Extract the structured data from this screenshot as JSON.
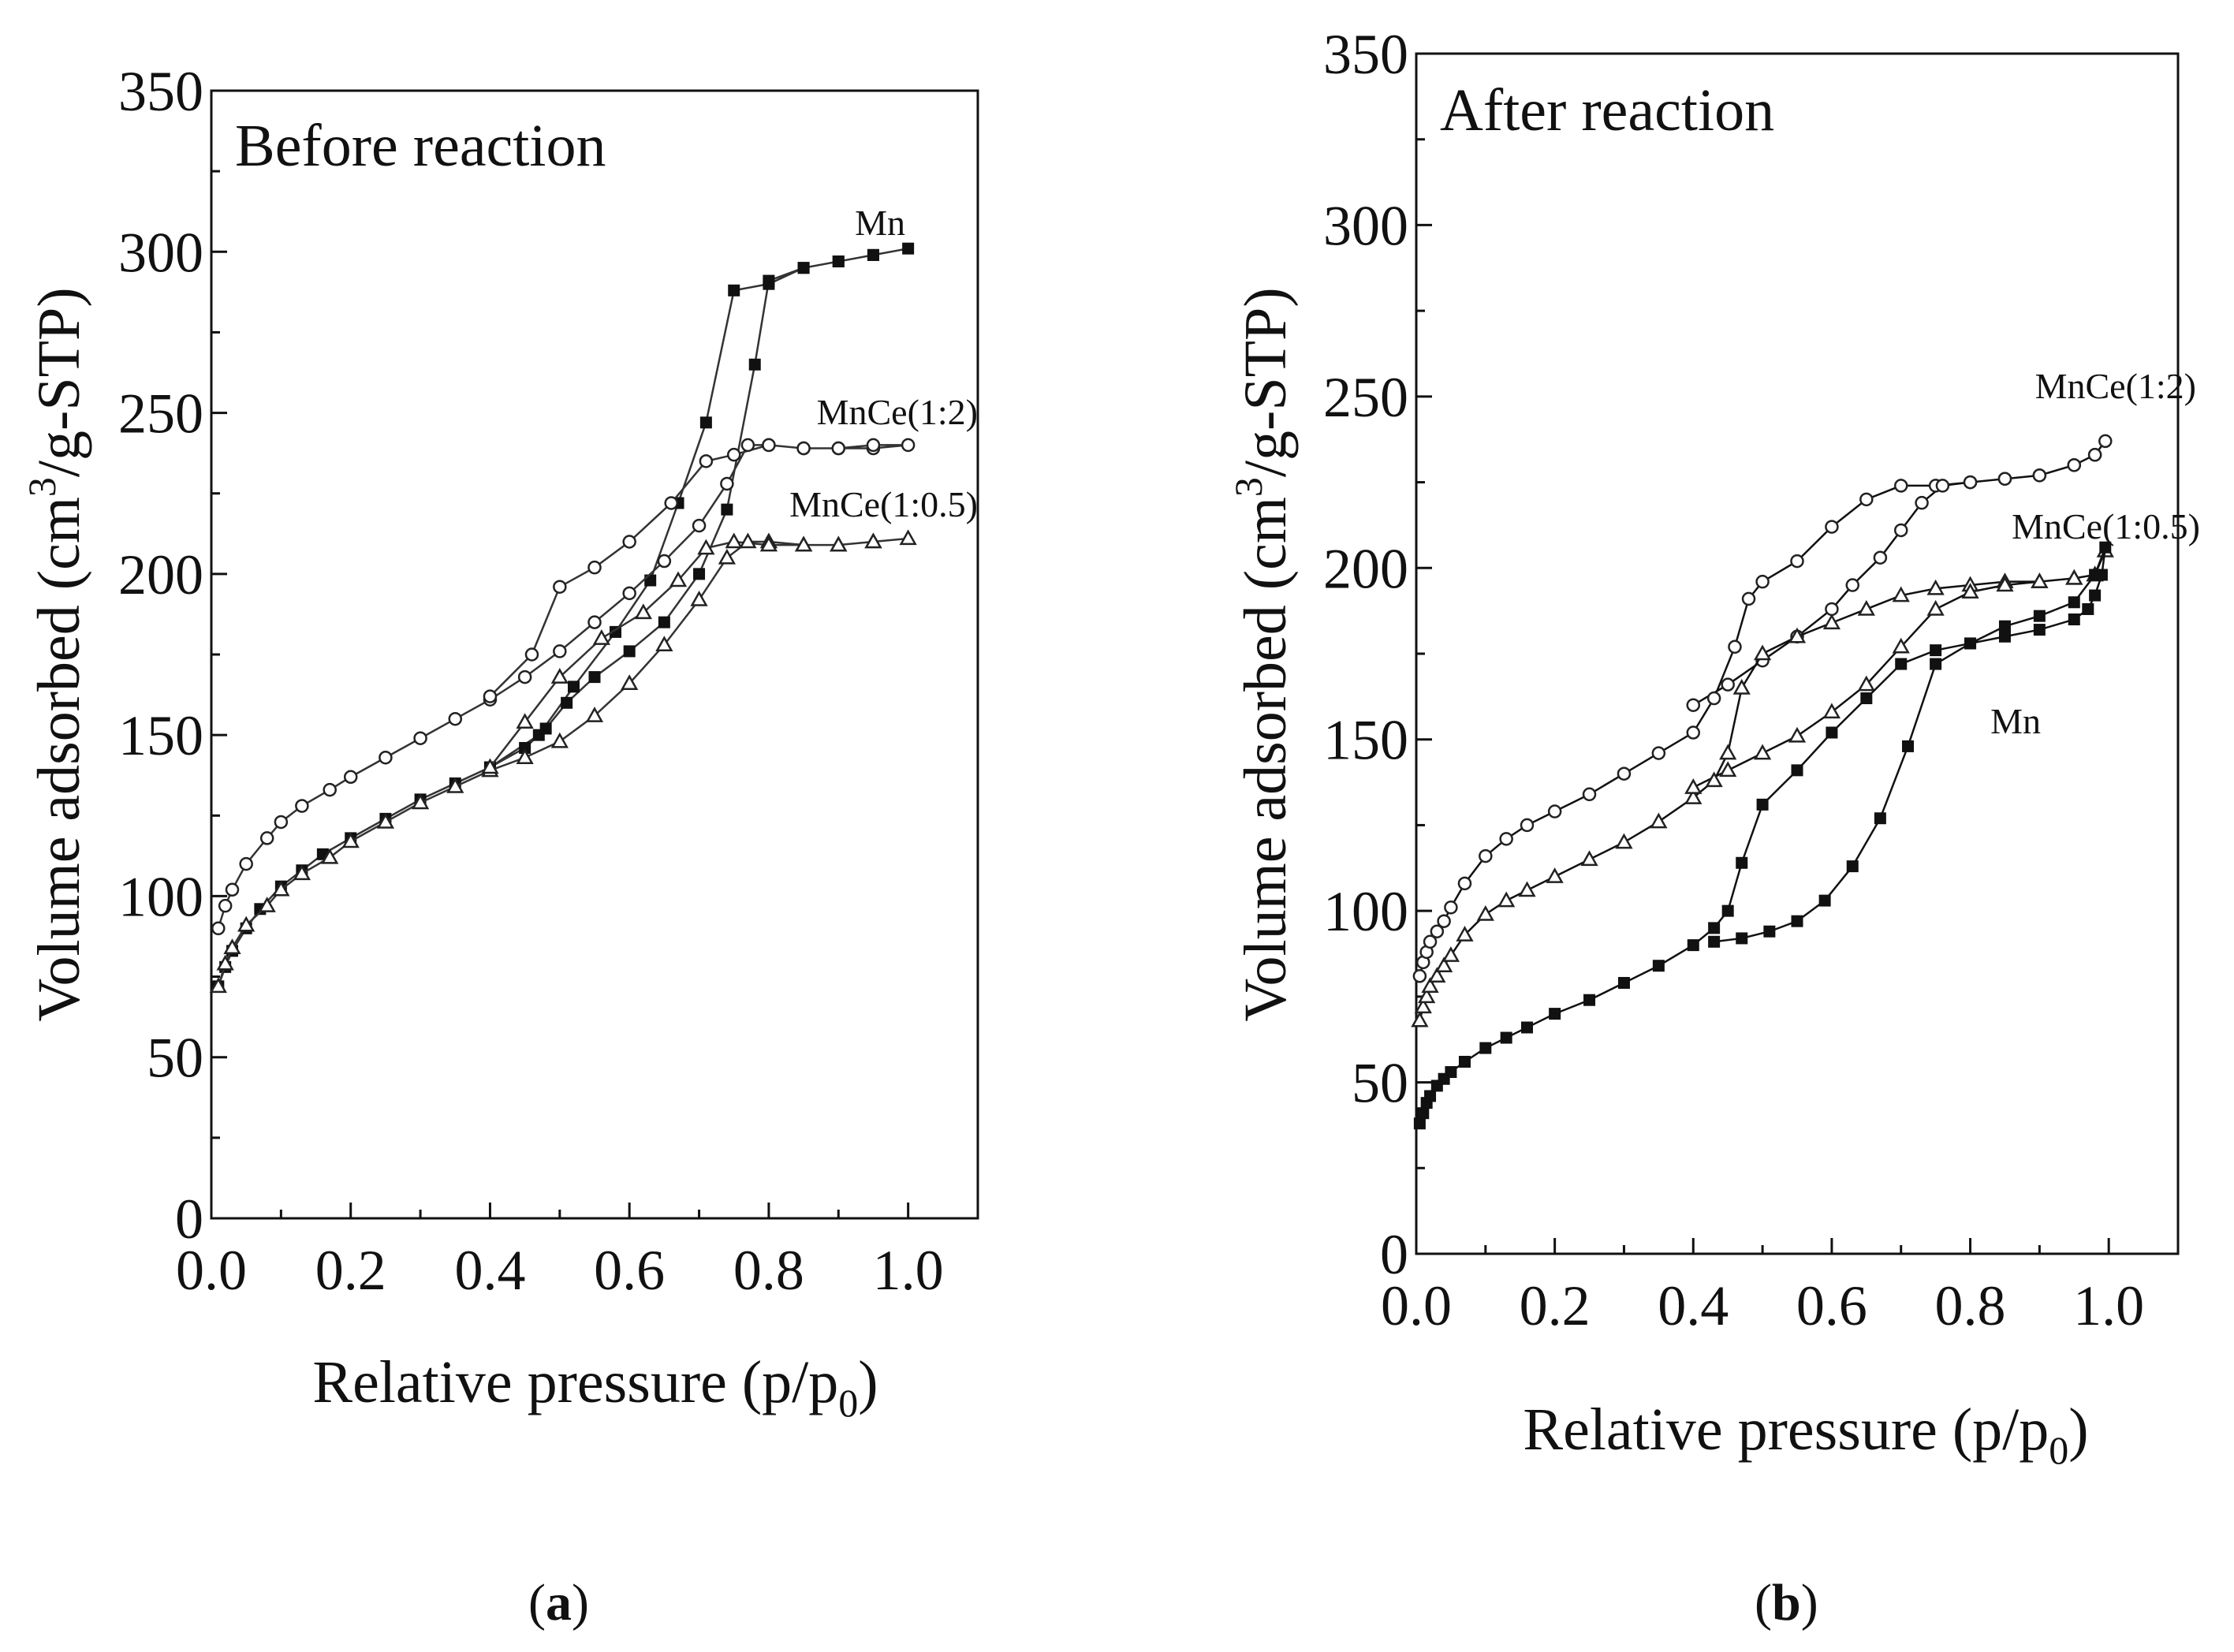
{
  "chart_data": [
    {
      "type": "scatter",
      "panel": "a",
      "title": "Before reaction",
      "xlabel": "Relative pressure (p/p0)",
      "ylabel": "Volume adsorbed (cm3/g-STP)",
      "xlim": [
        0,
        1.1
      ],
      "ylim": [
        0,
        350
      ],
      "xticks": [
        "0.0",
        "0.2",
        "0.4",
        "0.6",
        "0.8",
        "1.0"
      ],
      "yticks": [
        "0",
        "50",
        "100",
        "150",
        "200",
        "250",
        "300",
        "350"
      ],
      "caption": "a",
      "series": [
        {
          "name": "Mn",
          "marker": "square-filled",
          "x": [
            0.01,
            0.02,
            0.03,
            0.05,
            0.07,
            0.1,
            0.13,
            0.16,
            0.2,
            0.25,
            0.3,
            0.35,
            0.4,
            0.45,
            0.48,
            0.51,
            0.55,
            0.6,
            0.65,
            0.7,
            0.74,
            0.78,
            0.8,
            0.85,
            0.9,
            0.95,
            1.0,
            0.95,
            0.9,
            0.85,
            0.8,
            0.75,
            0.71,
            0.67,
            0.63,
            0.58,
            0.52,
            0.47,
            0.4
          ],
          "y": [
            72,
            78,
            83,
            90,
            96,
            103,
            108,
            113,
            118,
            124,
            130,
            135,
            140,
            146,
            152,
            160,
            168,
            176,
            185,
            200,
            220,
            265,
            291,
            295,
            297,
            299,
            301,
            299,
            297,
            295,
            290,
            288,
            247,
            222,
            198,
            182,
            165,
            150,
            140
          ]
        },
        {
          "name": "MnCe(1:2)",
          "marker": "circle-open",
          "x": [
            0.01,
            0.02,
            0.03,
            0.05,
            0.08,
            0.1,
            0.13,
            0.17,
            0.2,
            0.25,
            0.3,
            0.35,
            0.4,
            0.45,
            0.5,
            0.55,
            0.6,
            0.65,
            0.7,
            0.74,
            0.77,
            0.8,
            0.85,
            0.9,
            0.95,
            1.0,
            0.95,
            0.9,
            0.85,
            0.8,
            0.75,
            0.71,
            0.66,
            0.6,
            0.55,
            0.5,
            0.46,
            0.4
          ],
          "y": [
            90,
            97,
            102,
            110,
            118,
            123,
            128,
            133,
            137,
            143,
            149,
            155,
            161,
            168,
            176,
            185,
            194,
            204,
            215,
            228,
            240,
            240,
            239,
            239,
            239,
            240,
            240,
            239,
            239,
            240,
            237,
            235,
            222,
            210,
            202,
            196,
            175,
            162
          ]
        },
        {
          "name": "MnCe(1:0.5)",
          "marker": "triangle-open",
          "x": [
            0.01,
            0.02,
            0.03,
            0.05,
            0.08,
            0.1,
            0.13,
            0.17,
            0.2,
            0.25,
            0.3,
            0.35,
            0.4,
            0.45,
            0.5,
            0.55,
            0.6,
            0.65,
            0.7,
            0.74,
            0.77,
            0.8,
            0.85,
            0.9,
            0.95,
            1.0,
            0.95,
            0.9,
            0.85,
            0.8,
            0.75,
            0.71,
            0.67,
            0.62,
            0.56,
            0.5,
            0.45,
            0.4
          ],
          "y": [
            72,
            79,
            84,
            91,
            97,
            102,
            107,
            112,
            117,
            123,
            129,
            134,
            139,
            143,
            148,
            156,
            166,
            178,
            192,
            205,
            210,
            210,
            209,
            209,
            210,
            211,
            210,
            209,
            209,
            209,
            210,
            208,
            198,
            188,
            180,
            168,
            154,
            140
          ]
        }
      ]
    },
    {
      "type": "scatter",
      "panel": "b",
      "title": "After reaction",
      "xlabel": "Relative pressure (p/p0)",
      "ylabel": "Volume adsorbed (cm3/g-STP)",
      "xlim": [
        0,
        1.1
      ],
      "ylim": [
        0,
        350
      ],
      "xticks": [
        "0.0",
        "0.2",
        "0.4",
        "0.6",
        "0.8",
        "1.0"
      ],
      "yticks": [
        "0",
        "50",
        "100",
        "150",
        "200",
        "250",
        "300",
        "350"
      ],
      "caption": "b",
      "series": [
        {
          "name": "MnCe(1:2)",
          "marker": "circle-open",
          "x": [
            0.005,
            0.01,
            0.015,
            0.02,
            0.03,
            0.04,
            0.05,
            0.07,
            0.1,
            0.13,
            0.16,
            0.2,
            0.25,
            0.3,
            0.35,
            0.4,
            0.43,
            0.46,
            0.48,
            0.5,
            0.55,
            0.6,
            0.65,
            0.7,
            0.75,
            0.8,
            0.85,
            0.9,
            0.95,
            0.98,
            0.995,
            0.98,
            0.95,
            0.9,
            0.85,
            0.8,
            0.76,
            0.73,
            0.7,
            0.67,
            0.63,
            0.6,
            0.55,
            0.5,
            0.45,
            0.4
          ],
          "y": [
            81,
            85,
            88,
            91,
            94,
            97,
            101,
            108,
            116,
            121,
            125,
            129,
            134,
            140,
            146,
            152,
            162,
            177,
            191,
            196,
            202,
            212,
            220,
            224,
            224,
            225,
            226,
            227,
            230,
            233,
            237,
            233,
            230,
            227,
            226,
            225,
            224,
            219,
            211,
            203,
            195,
            188,
            180,
            173,
            166,
            160
          ]
        },
        {
          "name": "MnCe(1:0.5)",
          "marker": "triangle-open",
          "x": [
            0.005,
            0.01,
            0.015,
            0.02,
            0.03,
            0.04,
            0.05,
            0.07,
            0.1,
            0.13,
            0.16,
            0.2,
            0.25,
            0.3,
            0.35,
            0.4,
            0.43,
            0.45,
            0.47,
            0.5,
            0.55,
            0.6,
            0.65,
            0.7,
            0.75,
            0.8,
            0.85,
            0.9,
            0.95,
            0.98,
            0.995,
            0.98,
            0.95,
            0.9,
            0.85,
            0.8,
            0.75,
            0.7,
            0.65,
            0.6,
            0.55,
            0.5,
            0.45,
            0.4
          ],
          "y": [
            68,
            72,
            75,
            78,
            81,
            84,
            87,
            93,
            99,
            103,
            106,
            110,
            115,
            120,
            126,
            133,
            138,
            146,
            165,
            175,
            180,
            184,
            188,
            192,
            194,
            195,
            196,
            196,
            197,
            198,
            205,
            198,
            197,
            196,
            195,
            193,
            188,
            177,
            166,
            158,
            151,
            146,
            141,
            136
          ]
        },
        {
          "name": "Mn",
          "marker": "square-filled",
          "x": [
            0.005,
            0.01,
            0.015,
            0.02,
            0.03,
            0.04,
            0.05,
            0.07,
            0.1,
            0.13,
            0.16,
            0.2,
            0.25,
            0.3,
            0.35,
            0.4,
            0.43,
            0.45,
            0.47,
            0.5,
            0.55,
            0.6,
            0.65,
            0.7,
            0.75,
            0.8,
            0.85,
            0.9,
            0.95,
            0.97,
            0.98,
            0.99,
            0.995,
            0.98,
            0.95,
            0.9,
            0.85,
            0.8,
            0.75,
            0.71,
            0.67,
            0.63,
            0.59,
            0.55,
            0.51,
            0.47,
            0.43
          ],
          "y": [
            38,
            41,
            44,
            46,
            49,
            51,
            53,
            56,
            60,
            63,
            66,
            70,
            74,
            79,
            84,
            90,
            95,
            100,
            114,
            131,
            141,
            152,
            162,
            172,
            176,
            178,
            180,
            182,
            185,
            188,
            192,
            198,
            206,
            198,
            190,
            186,
            183,
            178,
            172,
            148,
            127,
            113,
            103,
            97,
            94,
            92,
            91
          ]
        }
      ]
    }
  ]
}
